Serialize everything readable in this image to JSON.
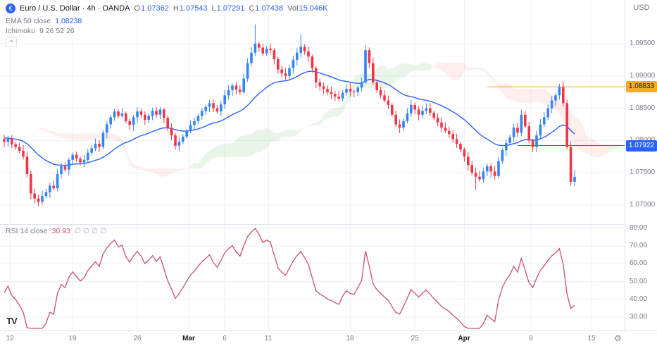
{
  "header": {
    "symbol_icon": "€",
    "title": "Euro / U.S. Dollar · 4h · OANDA",
    "ohlc": {
      "o": {
        "k": "O",
        "v": "1.07362"
      },
      "h": {
        "k": "H",
        "v": "1.07543"
      },
      "l": {
        "k": "L",
        "v": "1.07291"
      },
      "c": {
        "k": "C",
        "v": "1.07438"
      }
    },
    "vol": {
      "k": "Vol",
      "v": "15.046K"
    },
    "currency": "USD"
  },
  "indicators": {
    "ema": {
      "name": "EMA 50 close",
      "value": "1.08238"
    },
    "ichimoku": {
      "name": "Ichimoku",
      "params": "9 26 52 26"
    },
    "rsi": {
      "name": "RSI 14 close",
      "value": "30.93",
      "extra": "∅ ∅ ∅ ∅"
    }
  },
  "icons": {
    "gear": "⚙",
    "collapse": "^",
    "logo": "TV"
  },
  "colors": {
    "accent_blue": "#2962ff",
    "up": "#3684f2",
    "down": "#f23645",
    "rsi": "#c9526b",
    "grid": "#eef1f7",
    "border": "#dfe3ec",
    "text_dark": "#131722",
    "text_muted": "#787b86",
    "tag_orange": "#f7a928",
    "tag_blue": "#2962ff"
  },
  "chart_data": [
    {
      "type": "candlestick",
      "title": "Euro / U.S. Dollar, 4h, OANDA",
      "ylabel": "price (USD)",
      "ylim": [
        1.067,
        1.1018
      ],
      "grid": true,
      "pre_closes": [
        1.0832,
        1.0828,
        1.0835,
        1.084,
        1.0834,
        1.0826,
        1.082,
        1.0824,
        1.0815,
        1.081,
        1.0816,
        1.0808,
        1.0802,
        1.0806,
        1.0798,
        1.0792,
        1.0796,
        1.0788,
        1.0782,
        1.0786,
        1.0792,
        1.0798,
        1.0804,
        1.08,
        1.0795,
        1.079,
        1.0796,
        1.0802,
        1.0806,
        1.0802
      ],
      "closes": [
        1.0798,
        1.0803,
        1.0794,
        1.079,
        1.0784,
        1.0775,
        1.0748,
        1.0718,
        1.071,
        1.0705,
        1.0714,
        1.072,
        1.073,
        1.0726,
        1.0748,
        1.076,
        1.0755,
        1.077,
        1.0778,
        1.0772,
        1.0766,
        1.077,
        1.0781,
        1.0788,
        1.0795,
        1.079,
        1.0812,
        1.0825,
        1.0836,
        1.0845,
        1.0838,
        1.0842,
        1.083,
        1.0824,
        1.0836,
        1.0845,
        1.084,
        1.0832,
        1.0838,
        1.0846,
        1.084,
        1.0848,
        1.0835,
        1.082,
        1.0808,
        1.0792,
        1.0798,
        1.0806,
        1.0815,
        1.0824,
        1.083,
        1.0838,
        1.0846,
        1.0852,
        1.0858,
        1.085,
        1.0845,
        1.0856,
        1.087,
        1.0878,
        1.0885,
        1.0879,
        1.0875,
        1.0896,
        1.092,
        1.0936,
        1.095,
        1.0944,
        1.0935,
        1.0942,
        1.094,
        1.0926,
        1.091,
        1.0904,
        1.09,
        1.0912,
        1.0925,
        1.0936,
        1.0945,
        1.0938,
        1.093,
        1.0912,
        1.089,
        1.0884,
        1.088,
        1.0875,
        1.0872,
        1.0868,
        1.0865,
        1.0874,
        1.088,
        1.0876,
        1.0875,
        1.0882,
        1.089,
        1.094,
        1.092,
        1.089,
        1.0878,
        1.087,
        1.0862,
        1.0855,
        1.084,
        1.0825,
        1.082,
        1.083,
        1.0842,
        1.0855,
        1.0848,
        1.084,
        1.0846,
        1.085,
        1.0843,
        1.0835,
        1.0828,
        1.082,
        1.0815,
        1.081,
        1.0802,
        1.0795,
        1.0786,
        1.0775,
        1.0762,
        1.075,
        1.0744,
        1.074,
        1.0752,
        1.076,
        1.0752,
        1.0745,
        1.0768,
        1.0785,
        1.0796,
        1.0805,
        1.082,
        1.0812,
        1.084,
        1.0822,
        1.08,
        1.079,
        1.0808,
        1.0825,
        1.0836,
        1.085,
        1.0862,
        1.087,
        1.0883,
        1.0858,
        1.079,
        1.07362,
        1.07438
      ],
      "wick_base": 0.0009,
      "wick_overrides": {
        "9": {
          "l": 1.0698
        },
        "66": {
          "h": 1.098
        },
        "78": {
          "h": 1.0965
        },
        "95": {
          "h": 1.0948
        },
        "124": {
          "l": 1.0724
        },
        "146": {
          "h": 1.0888
        },
        "149": {
          "l": 1.073
        },
        "150": {
          "h": 1.07543,
          "l": 1.07291
        }
      },
      "up_color": "#3684f2",
      "down_color": "#f23645",
      "ema": {
        "label": "EMA 50 close",
        "value": 1.08238,
        "render_period": 26,
        "color": "#2962ff"
      },
      "ichimoku": {
        "label": "Ichimoku",
        "params": "9 26 52 26",
        "tenkan": 9,
        "kijun": 26,
        "senkou": 52,
        "senkou_render": 30,
        "shift": 26,
        "bull_fill": "rgba(76,175,80,0.13)",
        "bear_fill": "rgba(244,67,54,0.09)"
      },
      "levels": [
        {
          "price": 1.08833,
          "label": "1.08833",
          "color": "#f7a928",
          "text_color": "#1e222d",
          "start_index": 127
        },
        {
          "price": 1.07922,
          "label": "1.07922",
          "color": "#2962ff",
          "text_color": "#ffffff",
          "start_index": 135
        }
      ],
      "price_gridlines": [
        1.095,
        1.09,
        1.085,
        1.08,
        1.075,
        1.07
      ],
      "price_axis_labels": [
        "1.09500",
        "1.09000",
        "1.08500",
        "1.08000",
        "1.07500",
        "1.07000"
      ],
      "x_ticks": [
        {
          "label": "12",
          "index": 1.5,
          "major": false
        },
        {
          "label": "19",
          "index": 18,
          "major": false
        },
        {
          "label": "26",
          "index": 35,
          "major": false
        },
        {
          "label": "Mar",
          "index": 48.5,
          "major": true
        },
        {
          "label": "6",
          "index": 58,
          "major": false
        },
        {
          "label": "11",
          "index": 69.5,
          "major": false
        },
        {
          "label": "18",
          "index": 91,
          "major": false
        },
        {
          "label": "25",
          "index": 108,
          "major": false
        },
        {
          "label": "Apr",
          "index": 121,
          "major": true
        },
        {
          "label": "8",
          "index": 138.5,
          "major": false
        },
        {
          "label": "15",
          "index": 154.5,
          "major": false
        }
      ]
    },
    {
      "type": "line",
      "name": "RSI 14",
      "derived_from": "closes",
      "period": 14,
      "color": "#c9526b",
      "last_value_label": "30.93",
      "gridlines": [
        80,
        70,
        60,
        50,
        40,
        30
      ],
      "axis_labels": [
        "80.00",
        "70.00",
        "60.00",
        "50.00",
        "40.00",
        "30.00"
      ],
      "ylim_visible": [
        23,
        82
      ]
    }
  ]
}
